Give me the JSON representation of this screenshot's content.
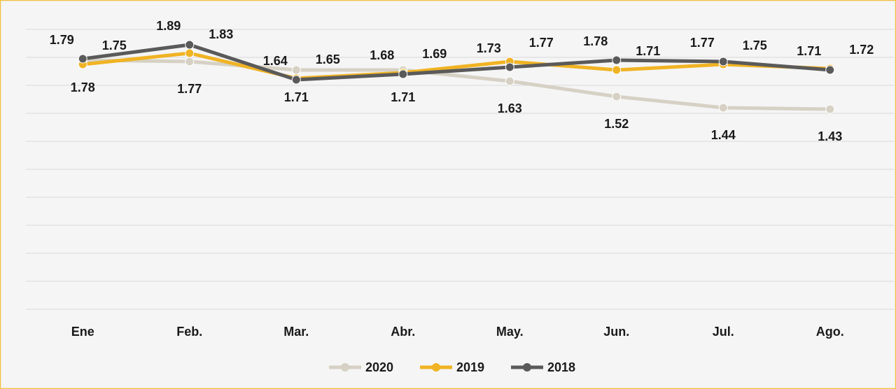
{
  "chart_data": {
    "type": "line",
    "categories": [
      "Ene",
      "Feb.",
      "Mar.",
      "Abr.",
      "May.",
      "Jun.",
      "Jul.",
      "Ago."
    ],
    "series": [
      {
        "name": "2020",
        "color": "#d6d1c4",
        "values": [
          1.78,
          1.77,
          1.71,
          1.71,
          1.63,
          1.52,
          1.44,
          1.43
        ]
      },
      {
        "name": "2019",
        "color": "#f0b323",
        "values": [
          1.75,
          1.83,
          1.65,
          1.69,
          1.77,
          1.71,
          1.75,
          1.72
        ]
      },
      {
        "name": "2018",
        "color": "#5a5a5a",
        "values": [
          1.79,
          1.89,
          1.64,
          1.68,
          1.73,
          1.78,
          1.77,
          1.71
        ]
      }
    ],
    "ylim": [
      0,
      2
    ],
    "yticks": [
      0,
      0.2,
      0.4,
      0.6,
      0.8,
      1,
      1.2,
      1.4,
      1.6,
      1.8,
      2
    ],
    "grid": true
  }
}
